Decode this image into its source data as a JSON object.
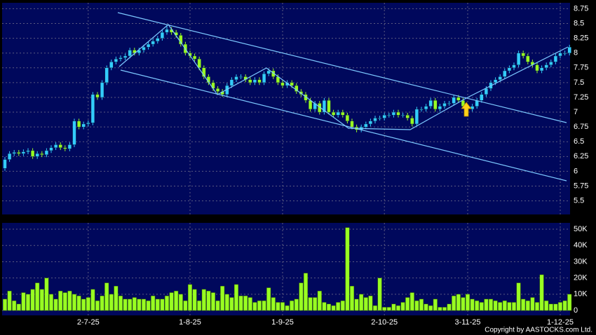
{
  "chart_data": {
    "type": "candlestick",
    "categories": [
      null,
      null,
      null,
      null,
      null,
      null,
      null,
      null,
      null,
      null,
      null,
      null,
      null,
      null,
      null,
      null,
      null,
      null,
      "2-7-25",
      null,
      null,
      null,
      null,
      null,
      null,
      null,
      null,
      null,
      null,
      null,
      null,
      null,
      null,
      null,
      null,
      null,
      null,
      null,
      null,
      null,
      "1-8-25",
      null,
      null,
      null,
      null,
      null,
      null,
      null,
      null,
      null,
      null,
      null,
      null,
      null,
      null,
      null,
      null,
      null,
      null,
      null,
      "1-9-25",
      null,
      null,
      null,
      null,
      null,
      null,
      null,
      null,
      null,
      null,
      null,
      null,
      null,
      null,
      null,
      null,
      null,
      null,
      null,
      null,
      null,
      "2-10-25",
      null,
      null,
      null,
      null,
      null,
      null,
      null,
      null,
      null,
      null,
      null,
      null,
      null,
      null,
      null,
      null,
      null,
      "3-11-25",
      null,
      null,
      null,
      null,
      null,
      null,
      null,
      null,
      null,
      null,
      null,
      null,
      null,
      null,
      null,
      null,
      null,
      null,
      null,
      "1-12-25",
      null,
      null
    ],
    "open": [
      6.05,
      6.2,
      6.3,
      6.32,
      6.3,
      6.33,
      6.35,
      6.25,
      6.3,
      6.28,
      6.35,
      6.4,
      6.45,
      6.4,
      6.38,
      6.45,
      6.85,
      6.75,
      6.8,
      6.82,
      7.3,
      7.25,
      7.5,
      7.75,
      7.85,
      7.9,
      7.92,
      7.95,
      8.05,
      8.0,
      8.05,
      8.1,
      8.15,
      8.2,
      8.25,
      8.35,
      8.4,
      8.35,
      8.3,
      8.15,
      8.0,
      7.95,
      7.9,
      7.75,
      7.6,
      7.5,
      7.4,
      7.35,
      7.3,
      7.45,
      7.55,
      7.6,
      7.6,
      7.55,
      7.5,
      7.55,
      7.5,
      7.65,
      7.7,
      7.6,
      7.5,
      7.45,
      7.5,
      7.45,
      7.35,
      7.3,
      7.2,
      7.05,
      7.15,
      7.0,
      7.2,
      7.0,
      6.95,
      7.0,
      6.95,
      6.85,
      6.75,
      6.7,
      6.75,
      6.8,
      6.85,
      6.9,
      6.9,
      6.95,
      6.95,
      7.0,
      6.95,
      6.95,
      6.9,
      6.8,
      7.05,
      7.05,
      7.1,
      7.2,
      7.05,
      7.1,
      7.15,
      7.15,
      7.25,
      7.2,
      7.1,
      7.05,
      7.1,
      7.2,
      7.3,
      7.4,
      7.5,
      7.55,
      7.6,
      7.7,
      7.75,
      7.8,
      8.0,
      7.95,
      7.85,
      7.8,
      7.7,
      7.75,
      7.8,
      7.85,
      7.95,
      8.0,
      8.0
    ],
    "high": [
      6.24,
      6.34,
      6.36,
      6.36,
      6.37,
      6.39,
      6.39,
      6.34,
      6.34,
      6.39,
      6.44,
      6.49,
      6.49,
      6.44,
      6.49,
      6.89,
      6.89,
      6.84,
      6.86,
      7.34,
      7.34,
      7.54,
      7.79,
      7.89,
      7.94,
      7.96,
      7.99,
      8.09,
      8.09,
      8.09,
      8.14,
      8.19,
      8.24,
      8.29,
      8.39,
      8.47,
      8.44,
      8.39,
      8.34,
      8.19,
      8.04,
      7.99,
      7.94,
      7.79,
      7.64,
      7.54,
      7.44,
      7.39,
      7.49,
      7.59,
      7.64,
      7.64,
      7.64,
      7.59,
      7.59,
      7.59,
      7.69,
      7.74,
      7.74,
      7.64,
      7.54,
      7.54,
      7.54,
      7.49,
      7.39,
      7.34,
      7.24,
      7.19,
      7.19,
      7.24,
      7.24,
      7.04,
      7.04,
      7.04,
      6.99,
      6.89,
      6.79,
      6.79,
      6.84,
      6.89,
      6.94,
      6.94,
      6.99,
      6.99,
      7.04,
      7.04,
      6.99,
      6.99,
      6.94,
      7.09,
      7.09,
      7.14,
      7.24,
      7.24,
      7.14,
      7.19,
      7.19,
      7.29,
      7.29,
      7.24,
      7.14,
      7.14,
      7.24,
      7.34,
      7.44,
      7.54,
      7.59,
      7.64,
      7.74,
      7.79,
      7.84,
      8.04,
      8.04,
      7.99,
      7.89,
      7.84,
      7.79,
      7.84,
      7.89,
      7.99,
      8.04,
      8.04,
      8.14
    ],
    "low": [
      6.01,
      6.16,
      6.26,
      6.26,
      6.26,
      6.29,
      6.21,
      6.21,
      6.24,
      6.24,
      6.31,
      6.36,
      6.36,
      6.34,
      6.34,
      6.41,
      6.71,
      6.71,
      6.76,
      6.78,
      7.21,
      7.21,
      7.46,
      7.71,
      7.81,
      7.86,
      7.88,
      7.91,
      7.96,
      7.96,
      8.01,
      8.06,
      8.11,
      8.16,
      8.21,
      8.31,
      8.31,
      8.26,
      8.11,
      7.96,
      7.91,
      7.86,
      7.71,
      7.56,
      7.46,
      7.36,
      7.31,
      7.26,
      7.26,
      7.41,
      7.51,
      7.56,
      7.51,
      7.46,
      7.46,
      7.46,
      7.46,
      7.61,
      7.56,
      7.46,
      7.41,
      7.41,
      7.41,
      7.31,
      7.26,
      7.16,
      7.01,
      7.01,
      6.96,
      6.96,
      6.96,
      6.91,
      6.91,
      6.91,
      6.81,
      6.71,
      6.66,
      6.66,
      6.71,
      6.76,
      6.81,
      6.86,
      6.86,
      6.91,
      6.91,
      6.91,
      6.91,
      6.86,
      6.76,
      6.76,
      7.01,
      7.01,
      7.06,
      7.01,
      7.01,
      7.06,
      7.11,
      7.11,
      7.16,
      7.06,
      7.01,
      7.01,
      7.06,
      7.16,
      7.26,
      7.36,
      7.46,
      7.51,
      7.56,
      7.66,
      7.71,
      7.76,
      7.91,
      7.81,
      7.76,
      7.66,
      7.66,
      7.71,
      7.76,
      7.81,
      7.91,
      7.96,
      7.96
    ],
    "close": [
      6.2,
      6.3,
      6.32,
      6.3,
      6.33,
      6.35,
      6.25,
      6.3,
      6.28,
      6.35,
      6.4,
      6.45,
      6.4,
      6.38,
      6.45,
      6.85,
      6.75,
      6.8,
      6.82,
      7.3,
      7.25,
      7.5,
      7.75,
      7.85,
      7.9,
      7.92,
      7.95,
      8.05,
      8.0,
      8.05,
      8.1,
      8.15,
      8.2,
      8.25,
      8.35,
      8.4,
      8.35,
      8.3,
      8.15,
      8.0,
      7.95,
      7.9,
      7.75,
      7.6,
      7.5,
      7.4,
      7.35,
      7.3,
      7.45,
      7.55,
      7.6,
      7.6,
      7.55,
      7.5,
      7.55,
      7.5,
      7.65,
      7.7,
      7.6,
      7.5,
      7.45,
      7.5,
      7.45,
      7.35,
      7.3,
      7.2,
      7.05,
      7.15,
      7.0,
      7.2,
      7.0,
      6.95,
      7.0,
      6.95,
      6.85,
      6.75,
      6.7,
      6.75,
      6.8,
      6.85,
      6.9,
      6.9,
      6.95,
      6.95,
      7.0,
      6.95,
      6.95,
      6.9,
      6.8,
      7.05,
      7.05,
      7.1,
      7.2,
      7.05,
      7.1,
      7.15,
      7.15,
      7.25,
      7.2,
      7.1,
      7.05,
      7.1,
      7.2,
      7.3,
      7.4,
      7.5,
      7.55,
      7.6,
      7.7,
      7.75,
      7.8,
      8.0,
      7.95,
      7.85,
      7.8,
      7.7,
      7.75,
      7.8,
      7.85,
      7.95,
      8.0,
      8.0,
      8.1
    ],
    "up_color": "#33ccff",
    "down_color": "#99ff22",
    "grid": true,
    "ylim": [
      5.27,
      8.85
    ],
    "yticks": [
      5.5,
      5.75,
      6,
      6.25,
      6.5,
      6.75,
      7,
      7.25,
      7.5,
      7.75,
      8,
      8.25,
      8.5,
      8.75
    ],
    "volume": {
      "color": "#99ff22",
      "values": [
        7000,
        12000,
        6000,
        4000,
        11000,
        10000,
        13000,
        17000,
        13000,
        20000,
        10000,
        7000,
        12000,
        11000,
        12000,
        10000,
        9000,
        7000,
        8000,
        13000,
        6000,
        9000,
        17000,
        10000,
        15000,
        9000,
        7000,
        7000,
        8000,
        7000,
        7000,
        6000,
        9000,
        7000,
        7000,
        9000,
        11000,
        12000,
        10000,
        6000,
        16000,
        13000,
        6000,
        13000,
        12000,
        11000,
        6000,
        15000,
        10000,
        8000,
        16000,
        9000,
        9000,
        8000,
        5000,
        6000,
        6000,
        14000,
        8000,
        5000,
        5000,
        3000,
        6000,
        7000,
        17000,
        23000,
        8000,
        8000,
        12000,
        5000,
        4000,
        3000,
        5000,
        6000,
        51000,
        15000,
        7000,
        10000,
        8000,
        9000,
        3000,
        20000,
        2000,
        2000,
        4000,
        3000,
        5000,
        8000,
        11000,
        6000,
        7000,
        4000,
        3000,
        7000,
        2000,
        2000,
        4000,
        9000,
        10000,
        8000,
        10000,
        7000,
        6000,
        5000,
        7000,
        7000,
        6000,
        5000,
        6000,
        5000,
        5000,
        17000,
        7000,
        6000,
        8000,
        5000,
        22000,
        6000,
        4000,
        4000,
        5000,
        6000,
        10000
      ],
      "ylim": [
        -3000,
        53900
      ],
      "yticks": [
        0,
        {
          "value": 10000,
          "label": "10K"
        },
        {
          "value": 20000,
          "label": "20K"
        },
        {
          "value": 30000,
          "label": "30K"
        },
        {
          "value": 40000,
          "label": "40K"
        },
        {
          "value": 50000,
          "label": "50K"
        }
      ]
    }
  },
  "copyright": "Copyright by AASTOCKS.com Ltd."
}
